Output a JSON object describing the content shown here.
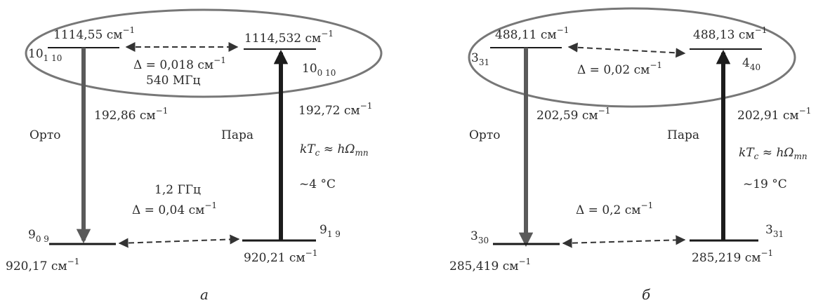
{
  "panels": [
    {
      "caption": "а",
      "top_left_value": "1114,55 см",
      "top_right_value": "1114,532 см",
      "top_left_state_main": "10",
      "top_left_state_sub": "1 10",
      "top_right_state_main": "10",
      "top_right_state_sub": "0 10",
      "top_delta": "Δ = 0,018 см",
      "top_freq": "540 МГц",
      "ortho_label": "Орто",
      "para_label": "Пара",
      "ortho_energy": "192,86 см",
      "para_energy": "192,72 см",
      "formula_k": "kT",
      "formula_c": "c",
      "formula_mid": " ≈ ",
      "formula_h": "hΩ",
      "formula_mn": "mn",
      "temperature": "~4 °C",
      "bottom_freq": "1,2 ГГц",
      "bottom_delta": "Δ = 0,04 см",
      "bottom_left_state_main": "9",
      "bottom_left_state_sub": "0 9",
      "bottom_right_state_main": "9",
      "bottom_right_state_sub": "1 9",
      "bottom_left_value": "920,17 см",
      "bottom_right_value": "920,21 см",
      "unit_exp": "−1"
    },
    {
      "caption": "б",
      "top_left_value": "488,11 см",
      "top_right_value": "488,13 см",
      "top_left_state_main": "3",
      "top_left_state_sub": "31",
      "top_right_state_main": "4",
      "top_right_state_sub": "40",
      "top_delta": "Δ = 0,02 см",
      "ortho_label": "Орто",
      "para_label": "Пара",
      "ortho_energy": "202,59 см",
      "para_energy": "202,91 см",
      "formula_k": "kT",
      "formula_c": "c",
      "formula_mid": " ≈ ",
      "formula_h": "hΩ",
      "formula_mn": "mn",
      "temperature": "~19 °C",
      "bottom_delta": "Δ = 0,2 см",
      "bottom_left_state_main": "3",
      "bottom_left_state_sub": "30",
      "bottom_right_state_main": "3",
      "bottom_right_state_sub": "31",
      "bottom_left_value": "285,419 см",
      "bottom_right_value": "285,219 см",
      "unit_exp": "−1"
    }
  ],
  "colors": {
    "ortho_arrow": "#5a5a5a",
    "para_arrow": "#1c1c1c",
    "ellipse": "#777777",
    "levels": "#1a1a1a",
    "dashed": "#333333"
  }
}
